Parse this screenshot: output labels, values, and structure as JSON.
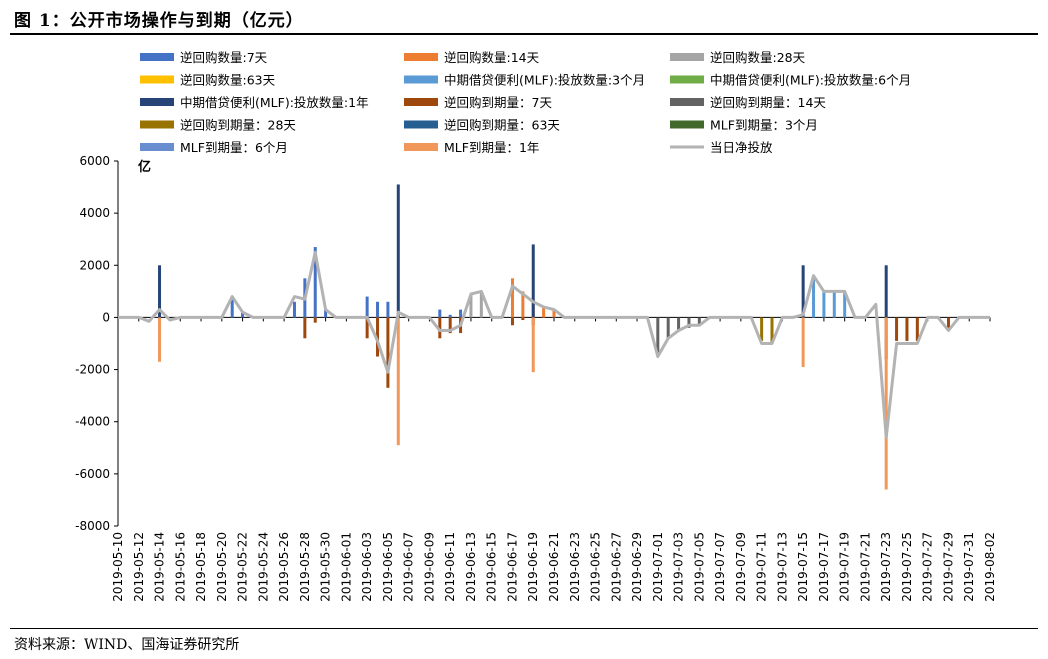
{
  "title": "图 1：公开市场操作与到期（亿元）",
  "source": "资料来源：WIND、国海证券研究所",
  "colors": {
    "rr7": "#4472C4",
    "rr14": "#ED7D31",
    "rr28": "#A5A5A5",
    "rr63": "#FFC000",
    "mlf3m": "#5B9BD5",
    "mlf6m": "#70AD47",
    "mlf1y": "#264478",
    "mrr7": "#9E480E",
    "mrr14": "#636363",
    "mrr28": "#997300",
    "mrr63": "#255E91",
    "mmlf3m": "#43682B",
    "mmlf6m": "#698ED0",
    "mmlf1y": "#F1975A",
    "net": "#B3B3B3"
  },
  "chart_data": {
    "type": "bar",
    "title": "公开市场操作与到期（亿元）",
    "ylabel": "亿",
    "ylim": [
      -8000,
      6000
    ],
    "yticks": [
      -8000,
      -6000,
      -4000,
      -2000,
      0,
      2000,
      4000,
      6000
    ],
    "legend_position": "top",
    "x_start": "2019-05-10",
    "x_end": "2019-08-02",
    "xtick_labels": [
      "2019-05-10",
      "2019-05-12",
      "2019-05-14",
      "2019-05-16",
      "2019-05-18",
      "2019-05-20",
      "2019-05-22",
      "2019-05-24",
      "2019-05-26",
      "2019-05-28",
      "2019-05-30",
      "2019-06-01",
      "2019-06-03",
      "2019-06-05",
      "2019-06-07",
      "2019-06-09",
      "2019-06-11",
      "2019-06-13",
      "2019-06-15",
      "2019-06-17",
      "2019-06-19",
      "2019-06-21",
      "2019-06-23",
      "2019-06-25",
      "2019-06-27",
      "2019-06-29",
      "2019-07-01",
      "2019-07-03",
      "2019-07-05",
      "2019-07-07",
      "2019-07-09",
      "2019-07-11",
      "2019-07-13",
      "2019-07-15",
      "2019-07-17",
      "2019-07-19",
      "2019-07-21",
      "2019-07-23",
      "2019-07-25",
      "2019-07-27",
      "2019-07-29",
      "2019-07-31",
      "2019-08-02"
    ],
    "series": [
      {
        "name": "逆回购数量:7天",
        "key": "rr7",
        "points": [
          [
            "2019-05-14",
            200
          ],
          [
            "2019-05-21",
            800
          ],
          [
            "2019-05-22",
            200
          ],
          [
            "2019-05-27",
            600
          ],
          [
            "2019-05-28",
            1500
          ],
          [
            "2019-05-29",
            2700
          ],
          [
            "2019-05-30",
            300
          ],
          [
            "2019-06-03",
            800
          ],
          [
            "2019-06-04",
            600
          ],
          [
            "2019-06-05",
            600
          ],
          [
            "2019-06-10",
            300
          ],
          [
            "2019-06-11",
            100
          ],
          [
            "2019-06-12",
            300
          ]
        ]
      },
      {
        "name": "逆回购数量:14天",
        "key": "rr14",
        "points": [
          [
            "2019-06-17",
            1500
          ],
          [
            "2019-06-18",
            1000
          ],
          [
            "2019-06-19",
            700
          ],
          [
            "2019-06-20",
            400
          ],
          [
            "2019-06-21",
            300
          ]
        ]
      },
      {
        "name": "逆回购数量:28天",
        "key": "rr28",
        "points": [
          [
            "2019-06-13",
            900
          ],
          [
            "2019-06-14",
            1000
          ]
        ]
      },
      {
        "name": "逆回购数量:63天",
        "key": "rr63",
        "points": []
      },
      {
        "name": "中期借贷便利(MLF):投放数量:3个月",
        "key": "mlf3m",
        "points": [
          [
            "2019-07-16",
            1500
          ],
          [
            "2019-07-17",
            1000
          ],
          [
            "2019-07-18",
            1000
          ],
          [
            "2019-07-19",
            1000
          ]
        ]
      },
      {
        "name": "中期借贷便利(MLF):投放数量:6个月",
        "key": "mlf6m",
        "points": []
      },
      {
        "name": "中期借贷便利(MLF):投放数量:1年",
        "key": "mlf1y",
        "points": [
          [
            "2019-05-14",
            2000
          ],
          [
            "2019-06-06",
            5100
          ],
          [
            "2019-06-19",
            2800
          ],
          [
            "2019-07-15",
            2000
          ],
          [
            "2019-07-23",
            2000
          ]
        ]
      },
      {
        "name": "逆回购到期量：7天",
        "key": "mrr7",
        "points": [
          [
            "2019-05-28",
            -800
          ],
          [
            "2019-05-29",
            -200
          ],
          [
            "2019-06-03",
            -800
          ],
          [
            "2019-06-04",
            -1500
          ],
          [
            "2019-06-05",
            -2700
          ],
          [
            "2019-06-10",
            -800
          ],
          [
            "2019-06-11",
            -600
          ],
          [
            "2019-06-12",
            -600
          ],
          [
            "2019-06-17",
            -300
          ],
          [
            "2019-06-18",
            -100
          ],
          [
            "2019-06-19",
            -300
          ],
          [
            "2019-07-23",
            -1600
          ],
          [
            "2019-07-24",
            -900
          ],
          [
            "2019-07-25",
            -900
          ],
          [
            "2019-07-26",
            -900
          ],
          [
            "2019-07-29",
            -400
          ]
        ]
      },
      {
        "name": "逆回购到期量：14天",
        "key": "mrr14",
        "points": [
          [
            "2019-07-01",
            -1500
          ],
          [
            "2019-07-02",
            -800
          ],
          [
            "2019-07-03",
            -500
          ],
          [
            "2019-07-04",
            -400
          ],
          [
            "2019-07-05",
            -300
          ]
        ]
      },
      {
        "name": "逆回购到期量：28天",
        "key": "mrr28",
        "points": [
          [
            "2019-07-11",
            -900
          ],
          [
            "2019-07-12",
            -1000
          ]
        ]
      },
      {
        "name": "逆回购到期量：63天",
        "key": "mrr63",
        "points": []
      },
      {
        "name": "MLF到期量：3个月",
        "key": "mmlf3m",
        "points": []
      },
      {
        "name": "MLF到期量：6个月",
        "key": "mmlf6m",
        "points": []
      },
      {
        "name": "MLF到期量：1年",
        "key": "mmlf1y",
        "points": [
          [
            "2019-05-14",
            -1700
          ],
          [
            "2019-06-06",
            -4900
          ],
          [
            "2019-06-19",
            -2100
          ],
          [
            "2019-07-15",
            -1900
          ],
          [
            "2019-07-23",
            -6600
          ]
        ]
      }
    ],
    "net_series": {
      "name": "当日净投放",
      "key": "net",
      "points": [
        [
          "2019-05-10",
          0
        ],
        [
          "2019-05-11",
          0
        ],
        [
          "2019-05-12",
          0
        ],
        [
          "2019-05-13",
          -150
        ],
        [
          "2019-05-14",
          300
        ],
        [
          "2019-05-15",
          -100
        ],
        [
          "2019-05-16",
          0
        ],
        [
          "2019-05-17",
          0
        ],
        [
          "2019-05-18",
          0
        ],
        [
          "2019-05-19",
          0
        ],
        [
          "2019-05-20",
          0
        ],
        [
          "2019-05-21",
          800
        ],
        [
          "2019-05-22",
          200
        ],
        [
          "2019-05-23",
          0
        ],
        [
          "2019-05-24",
          0
        ],
        [
          "2019-05-25",
          0
        ],
        [
          "2019-05-26",
          0
        ],
        [
          "2019-05-27",
          800
        ],
        [
          "2019-05-28",
          700
        ],
        [
          "2019-05-29",
          2500
        ],
        [
          "2019-05-30",
          300
        ],
        [
          "2019-05-31",
          0
        ],
        [
          "2019-06-01",
          0
        ],
        [
          "2019-06-02",
          0
        ],
        [
          "2019-06-03",
          0
        ],
        [
          "2019-06-04",
          -900
        ],
        [
          "2019-06-05",
          -2100
        ],
        [
          "2019-06-06",
          200
        ],
        [
          "2019-06-07",
          0
        ],
        [
          "2019-06-08",
          0
        ],
        [
          "2019-06-09",
          0
        ],
        [
          "2019-06-10",
          -500
        ],
        [
          "2019-06-11",
          -500
        ],
        [
          "2019-06-12",
          -300
        ],
        [
          "2019-06-13",
          900
        ],
        [
          "2019-06-14",
          1000
        ],
        [
          "2019-06-15",
          0
        ],
        [
          "2019-06-16",
          0
        ],
        [
          "2019-06-17",
          1200
        ],
        [
          "2019-06-18",
          900
        ],
        [
          "2019-06-19",
          600
        ],
        [
          "2019-06-20",
          400
        ],
        [
          "2019-06-21",
          300
        ],
        [
          "2019-06-22",
          0
        ],
        [
          "2019-06-23",
          0
        ],
        [
          "2019-06-24",
          0
        ],
        [
          "2019-06-25",
          0
        ],
        [
          "2019-06-26",
          0
        ],
        [
          "2019-06-27",
          0
        ],
        [
          "2019-06-28",
          0
        ],
        [
          "2019-06-29",
          0
        ],
        [
          "2019-06-30",
          0
        ],
        [
          "2019-07-01",
          -1500
        ],
        [
          "2019-07-02",
          -800
        ],
        [
          "2019-07-03",
          -500
        ],
        [
          "2019-07-04",
          -300
        ],
        [
          "2019-07-05",
          -300
        ],
        [
          "2019-07-06",
          0
        ],
        [
          "2019-07-07",
          0
        ],
        [
          "2019-07-08",
          0
        ],
        [
          "2019-07-09",
          0
        ],
        [
          "2019-07-10",
          0
        ],
        [
          "2019-07-11",
          -1000
        ],
        [
          "2019-07-12",
          -1000
        ],
        [
          "2019-07-13",
          0
        ],
        [
          "2019-07-14",
          0
        ],
        [
          "2019-07-15",
          100
        ],
        [
          "2019-07-16",
          1600
        ],
        [
          "2019-07-17",
          1000
        ],
        [
          "2019-07-18",
          1000
        ],
        [
          "2019-07-19",
          1000
        ],
        [
          "2019-07-20",
          0
        ],
        [
          "2019-07-21",
          0
        ],
        [
          "2019-07-22",
          500
        ],
        [
          "2019-07-23",
          -4600
        ],
        [
          "2019-07-24",
          -1000
        ],
        [
          "2019-07-25",
          -1000
        ],
        [
          "2019-07-26",
          -1000
        ],
        [
          "2019-07-27",
          0
        ],
        [
          "2019-07-28",
          0
        ],
        [
          "2019-07-29",
          -500
        ],
        [
          "2019-07-30",
          0
        ],
        [
          "2019-07-31",
          0
        ],
        [
          "2019-08-01",
          0
        ],
        [
          "2019-08-02",
          0
        ]
      ]
    }
  }
}
